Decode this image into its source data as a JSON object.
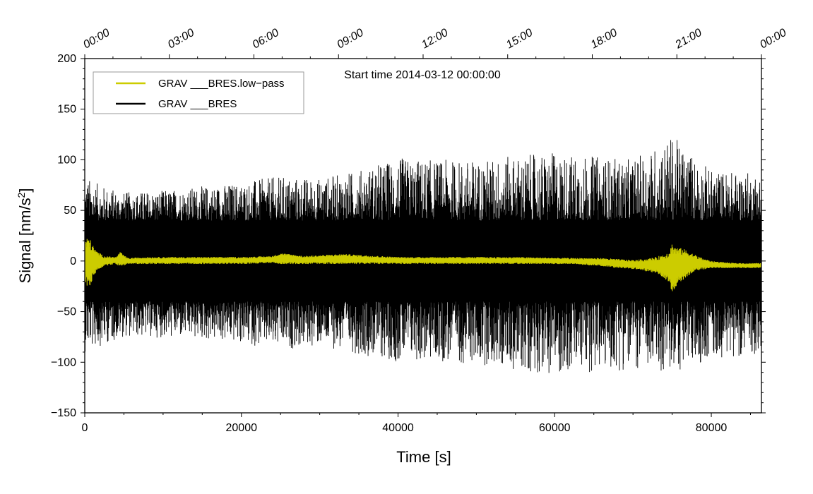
{
  "chart_data": {
    "type": "line",
    "annotation": "Start time 2014-03-12 00:00:00",
    "xlabel": "Time [s]",
    "ylabel_main": "Signal [nm/s",
    "ylabel_sup": "2",
    "ylabel_end": "]",
    "xlim": [
      0,
      86400
    ],
    "ylim": [
      -150,
      200
    ],
    "x_ticks": [
      0,
      20000,
      40000,
      60000,
      80000
    ],
    "x_tick_labels": [
      "0",
      "20000",
      "40000",
      "60000",
      "80000"
    ],
    "y_ticks": [
      -150,
      -100,
      -50,
      0,
      50,
      100,
      150,
      200
    ],
    "y_tick_labels": [
      "−150",
      "−100",
      "−50",
      "0",
      "50",
      "100",
      "150",
      "200"
    ],
    "top_axis_times": [
      0,
      10800,
      21600,
      32400,
      43200,
      54000,
      64800,
      75600,
      86400
    ],
    "top_axis_labels": [
      "00:00",
      "03:00",
      "06:00",
      "09:00",
      "12:00",
      "15:00",
      "18:00",
      "21:00",
      "00:00"
    ],
    "legend_position": "top-left",
    "series": [
      {
        "name": "GRAV ___BRES.low−pass",
        "color": "#cccc00",
        "envelope_x": [
          0,
          500,
          1000,
          1500,
          2500,
          4000,
          4500,
          5500,
          8000,
          15000,
          20000,
          24000,
          25000,
          28000,
          33000,
          40000,
          48000,
          55000,
          62000,
          66000,
          68000,
          70000,
          71500,
          73000,
          74500,
          75000,
          75500,
          76500,
          77500,
          78500,
          80000,
          83000,
          86400
        ],
        "envelope_max": [
          20,
          25,
          16,
          10,
          5,
          4,
          9,
          3,
          4,
          4,
          4,
          5,
          8,
          5,
          7,
          4,
          4,
          4,
          3,
          3,
          2,
          1,
          2,
          4,
          9,
          18,
          14,
          12,
          8,
          4,
          0,
          -2,
          -2
        ],
        "envelope_min": [
          -20,
          -29,
          -18,
          -10,
          -5,
          -3,
          -6,
          -3,
          -3,
          -3,
          -3,
          -2,
          -3,
          -3,
          -3,
          -3,
          -3,
          -3,
          -3,
          -5,
          -7,
          -8,
          -10,
          -12,
          -20,
          -32,
          -25,
          -18,
          -12,
          -9,
          -7,
          -7,
          -7
        ]
      },
      {
        "name": "GRAV ___BRES",
        "color": "#000000",
        "envelope_x": [
          0,
          2000,
          5000,
          10000,
          15000,
          20000,
          25000,
          30000,
          35000,
          40000,
          45000,
          50000,
          55000,
          60000,
          65000,
          70000,
          75000,
          80000,
          86400
        ],
        "envelope_max": [
          84,
          75,
          68,
          70,
          74,
          78,
          84,
          82,
          90,
          102,
          100,
          100,
          104,
          107,
          104,
          100,
          124,
          90,
          87
        ],
        "envelope_min": [
          -90,
          -84,
          -75,
          -76,
          -78,
          -82,
          -88,
          -84,
          -92,
          -100,
          -100,
          -102,
          -108,
          -112,
          -110,
          -107,
          -112,
          -96,
          -92
        ],
        "typical_amplitude": 40
      }
    ]
  }
}
